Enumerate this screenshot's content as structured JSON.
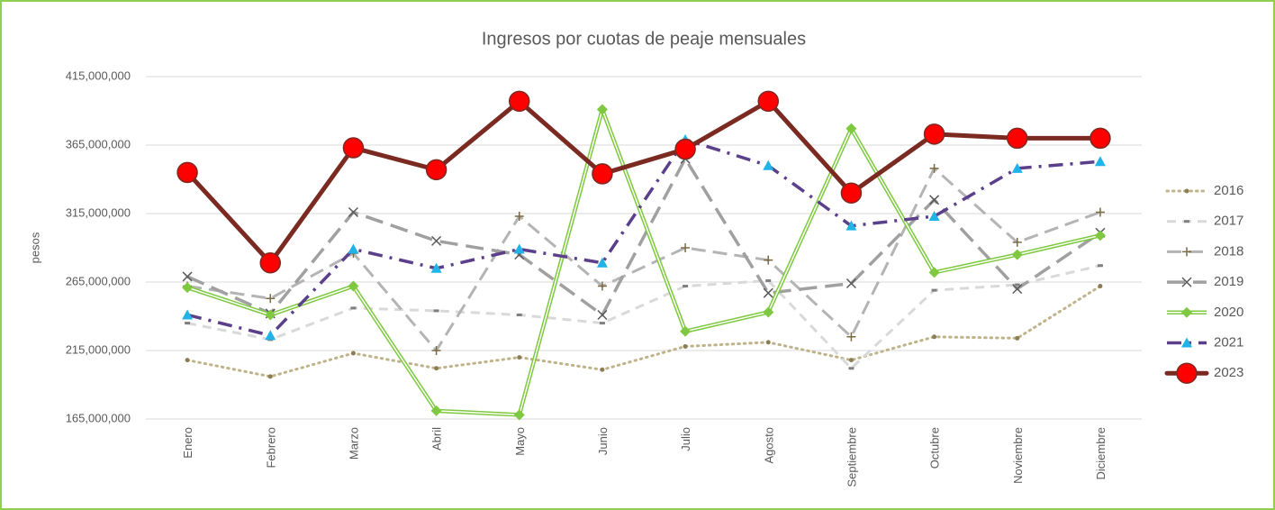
{
  "chart_data": {
    "type": "line",
    "title": "Ingresos por cuotas de peaje  mensuales",
    "y_label": "pesos",
    "categories": [
      "Enero",
      "Febrero",
      "Marzo",
      "Abril",
      "Mayo",
      "Junio",
      "Julio",
      "Agosto",
      "Septiembre",
      "Octubre",
      "Noviembre",
      "Diciembre"
    ],
    "ylim": [
      165000000,
      415000000
    ],
    "yticks": [
      {
        "value": 165000000,
        "label": "165,000,000"
      },
      {
        "value": 215000000,
        "label": "215,000,000"
      },
      {
        "value": 265000000,
        "label": "265,000,000"
      },
      {
        "value": 315000000,
        "label": "315,000,000"
      },
      {
        "value": 365000000,
        "label": "365,000,000"
      },
      {
        "value": 415000000,
        "label": "415,000,000"
      }
    ],
    "grid": true,
    "legend": "right",
    "series": [
      {
        "name": "2016",
        "color": "#bfb38a",
        "marker_color": "#8c7d55",
        "line_style": "dotted",
        "marker": "dot",
        "values": [
          208000000,
          196000000,
          213000000,
          202000000,
          210000000,
          201000000,
          218000000,
          221000000,
          208000000,
          225000000,
          224000000,
          262000000
        ]
      },
      {
        "name": "2017",
        "color": "#d9d9d9",
        "marker_color": "#7f7f7f",
        "line_style": "dashed",
        "marker": "dash",
        "values": [
          235000000,
          223000000,
          246000000,
          244000000,
          241000000,
          235000000,
          262000000,
          266000000,
          202000000,
          259000000,
          263000000,
          277000000
        ]
      },
      {
        "name": "2018",
        "color": "#b4b4b4",
        "marker_color": "#7a6a45",
        "line_style": "long-dash",
        "marker": "plus",
        "values": [
          262000000,
          253000000,
          286000000,
          215000000,
          313000000,
          262000000,
          290000000,
          281000000,
          225000000,
          348000000,
          294000000,
          316000000
        ]
      },
      {
        "name": "2019",
        "color": "#a0a0a0",
        "marker_color": "#595959",
        "line_style": "long-dash-thick",
        "marker": "x",
        "values": [
          269000000,
          242000000,
          316000000,
          295000000,
          285000000,
          241000000,
          355000000,
          257000000,
          264000000,
          325000000,
          260000000,
          301000000
        ]
      },
      {
        "name": "2020",
        "color": "#7ec93f",
        "marker_color": "#7ec93f",
        "line_style": "double",
        "marker": "diamond",
        "values": [
          261000000,
          241000000,
          262000000,
          171000000,
          168000000,
          391000000,
          229000000,
          243000000,
          377000000,
          272000000,
          285000000,
          299000000
        ]
      },
      {
        "name": "2021",
        "color": "#5b3f8a",
        "marker_color": "#1fb3e8",
        "line_style": "dash-dot",
        "marker": "triangle",
        "values": [
          241000000,
          226000000,
          289000000,
          275000000,
          289000000,
          279000000,
          369000000,
          350000000,
          306000000,
          313000000,
          348000000,
          353000000
        ]
      },
      {
        "name": "2023",
        "color": "#7b2a22",
        "marker_color": "#ff0000",
        "line_style": "solid",
        "marker": "circle",
        "values": [
          345000000,
          279000000,
          363000000,
          347000000,
          397000000,
          344000000,
          362000000,
          397000000,
          330000000,
          373000000,
          370000000,
          370000000
        ]
      }
    ]
  }
}
